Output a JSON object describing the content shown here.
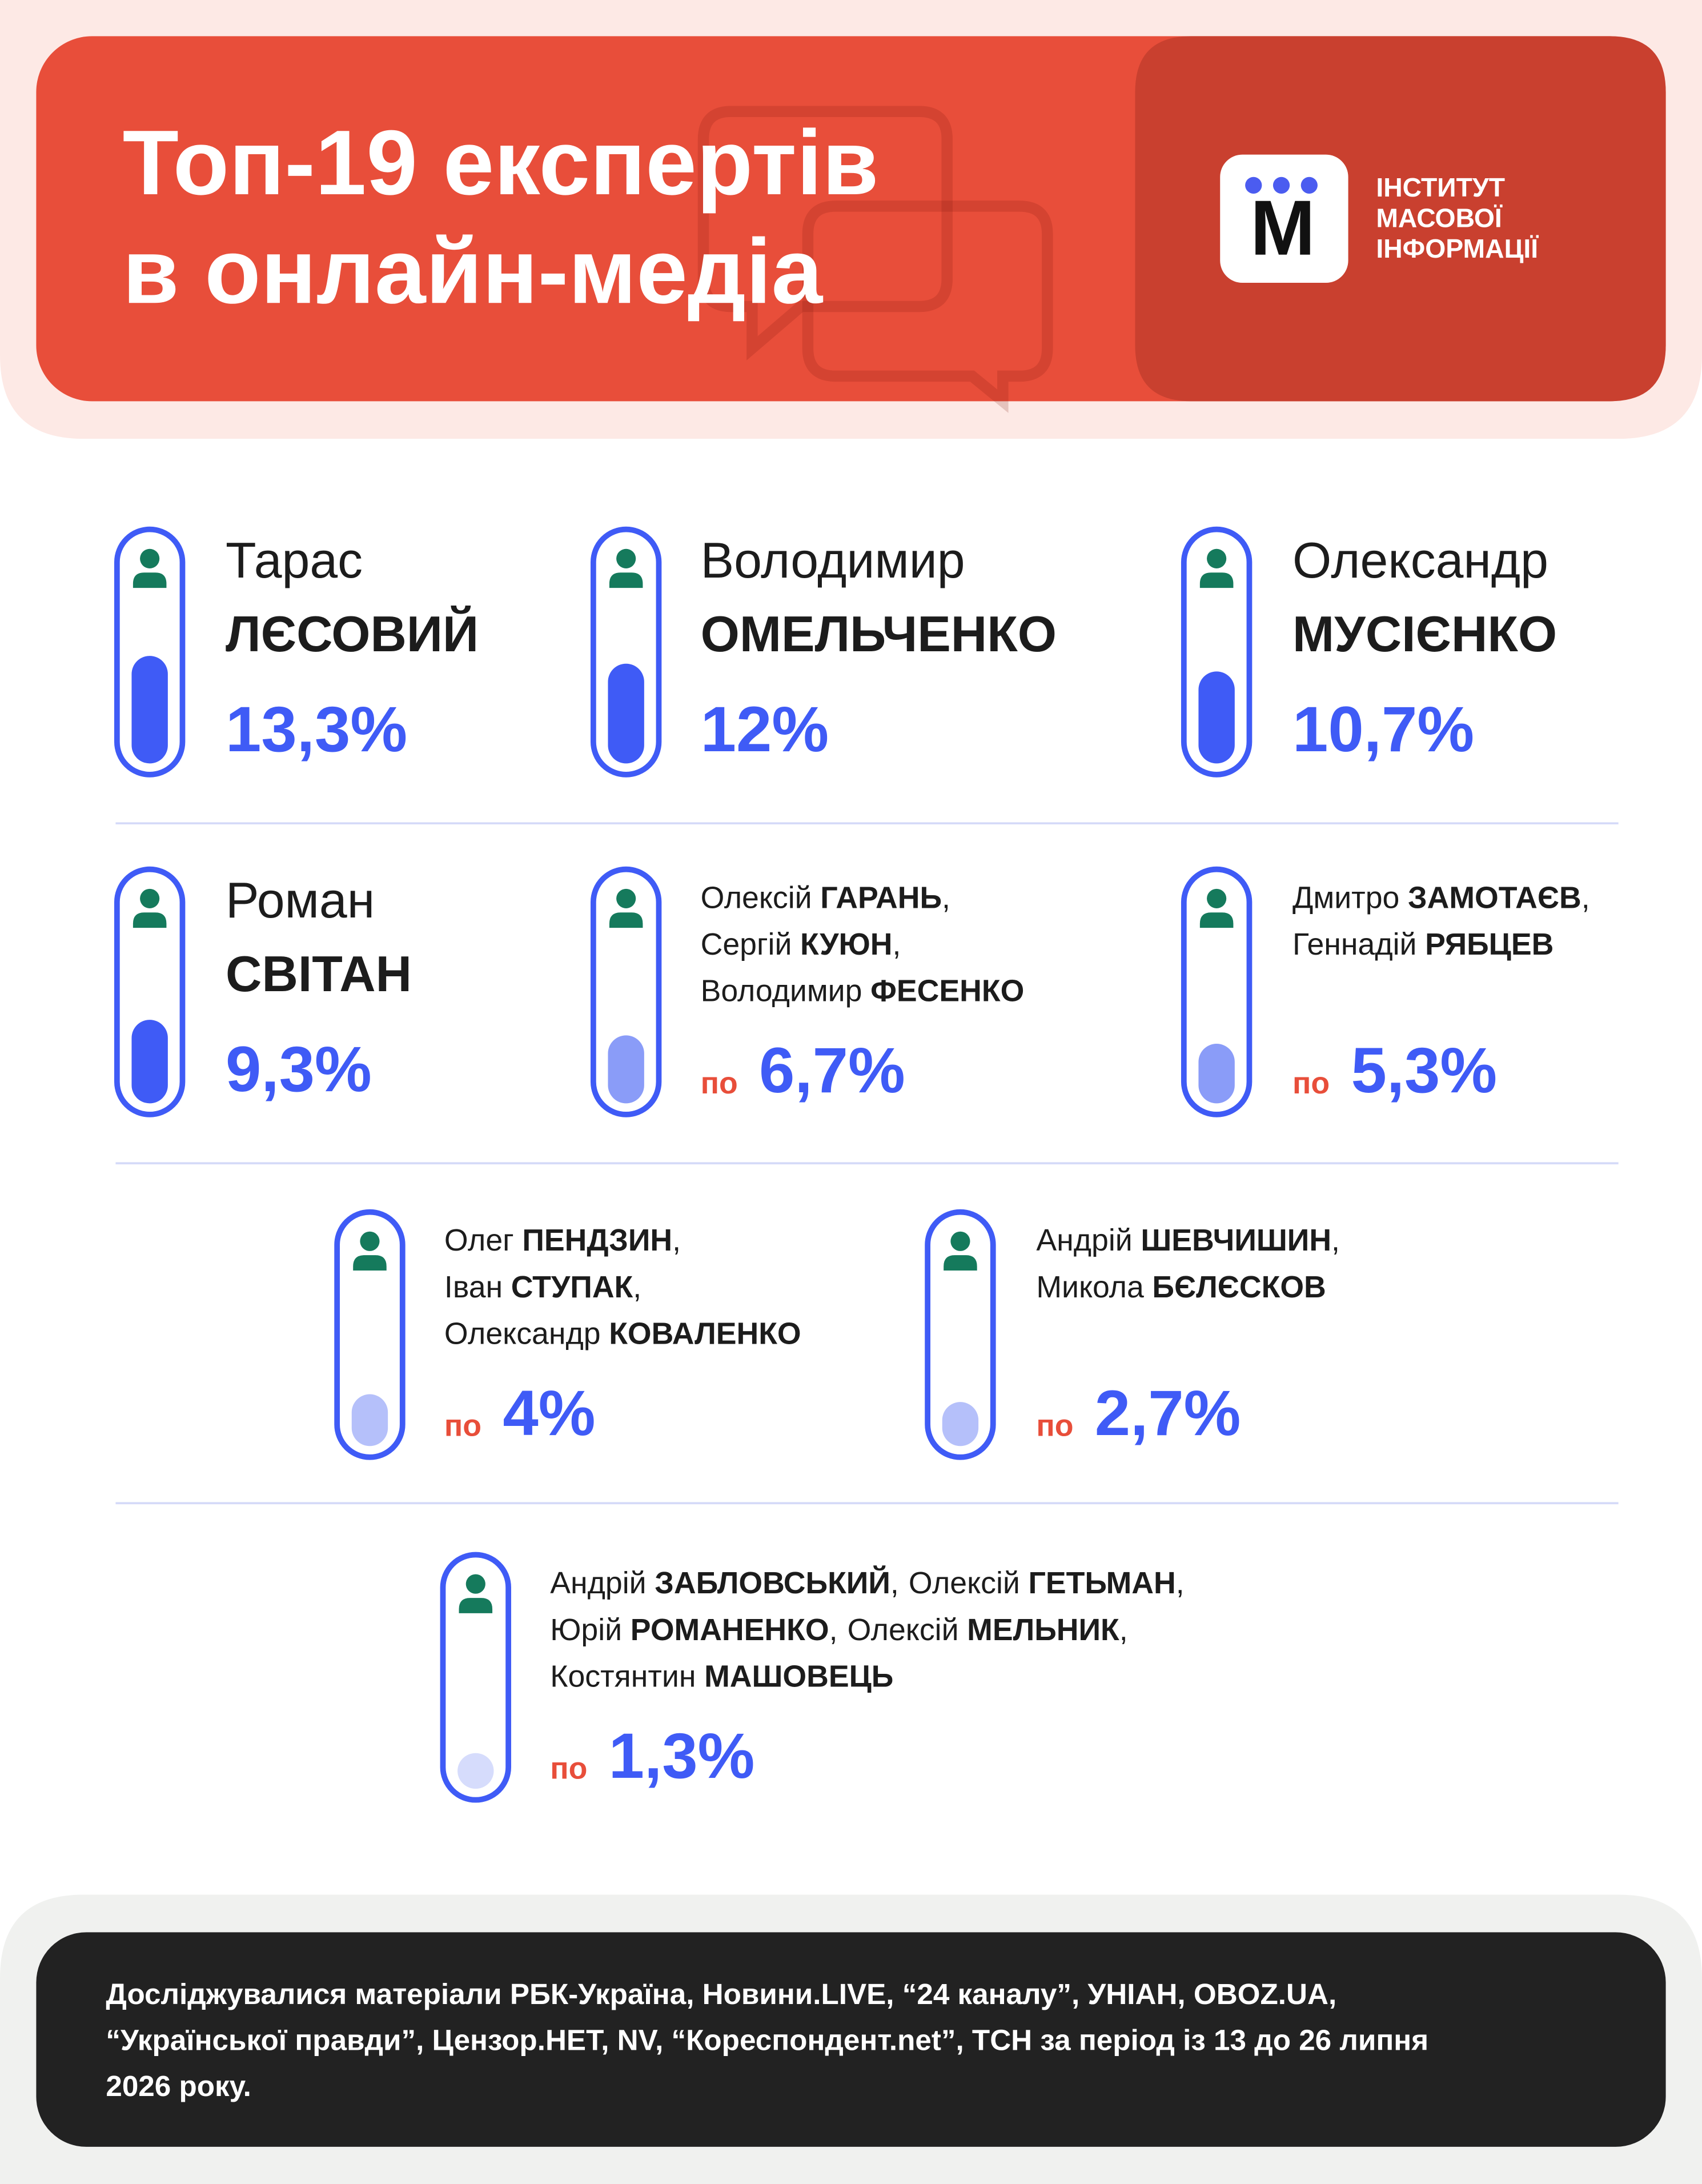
{
  "header": {
    "title_lines": [
      "Топ-19 експертів",
      "в онлайн-медіа"
    ],
    "logo_letter": "M",
    "logo_lines": [
      "ІНСТИТУТ",
      "МАСОВОЇ",
      "ІНФОРМАЦІЇ"
    ]
  },
  "items": [
    {
      "first_name": "Тарас",
      "last_name": "ЛЄСОВИЙ",
      "value": 13.3,
      "value_label": "13,3%",
      "color": "#3f5bf6"
    },
    {
      "first_name": "Володимир",
      "last_name": "ОМЕЛЬЧЕНКО",
      "value": 12,
      "value_label": "12%",
      "color": "#3f5bf6"
    },
    {
      "first_name": "Олександр",
      "last_name": "МУСІЄНКО",
      "value": 10.7,
      "value_label": "10,7%",
      "color": "#3f5bf6"
    },
    {
      "first_name": "Роман",
      "last_name": "СВІТАН",
      "value": 9.3,
      "value_label": "9,3%",
      "color": "#3f5bf6"
    },
    {
      "lines": [
        [
          {
            "first": "Олексій",
            "last": "ГАРАНЬ",
            "sep": ","
          }
        ],
        [
          {
            "first": "Сергій",
            "last": "КУЮН",
            "sep": ","
          }
        ],
        [
          {
            "first": "Володимир",
            "last": "ФЕСЕНКО"
          }
        ]
      ],
      "prefix": "по",
      "value": 6.7,
      "value_label": "6,7%",
      "color": "#8a9cf8"
    },
    {
      "lines": [
        [
          {
            "first": "Дмитро",
            "last": "ЗАМОТАЄВ",
            "sep": ","
          }
        ],
        [
          {
            "first": "Геннадій",
            "last": "РЯБЦЕВ"
          }
        ]
      ],
      "prefix": "по",
      "value": 5.3,
      "value_label": "5,3%",
      "color": "#8a9cf8"
    },
    {
      "lines": [
        [
          {
            "first": "Олег",
            "last": "ПЕНДЗИН",
            "sep": ","
          }
        ],
        [
          {
            "first": "Іван",
            "last": "СТУПАК",
            "sep": ","
          }
        ],
        [
          {
            "first": "Олександр",
            "last": "КОВАЛЕНКО"
          }
        ]
      ],
      "prefix": "по",
      "value": 4,
      "value_label": "4%",
      "color": "#b5c0fa"
    },
    {
      "lines": [
        [
          {
            "first": "Андрій",
            "last": "ШЕВЧИШИН",
            "sep": ","
          }
        ],
        [
          {
            "first": "Микола",
            "last": "БЄЛЄСКОВ"
          }
        ]
      ],
      "prefix": "по",
      "value": 2.7,
      "value_label": "2,7%",
      "color": "#b5c0fa"
    },
    {
      "lines": [
        [
          {
            "first": "Андрій",
            "last": "ЗАБЛОВСЬКИЙ",
            "sep": ","
          },
          {
            "first": "Олексій",
            "last": "ГЕТЬМАН",
            "sep": ","
          }
        ],
        [
          {
            "first": "Юрій",
            "last": "РОМАНЕНКО",
            "sep": ","
          },
          {
            "first": "Олексій",
            "last": "МЕЛЬНИК",
            "sep": ","
          }
        ],
        [
          {
            "first": "Костянтин",
            "last": "МАШОВЕЦЬ"
          }
        ]
      ],
      "prefix": "по",
      "value": 1.3,
      "value_label": "1,3%",
      "color": "#d6dcfc"
    }
  ],
  "footer": {
    "lines": [
      "Досліджувалися матеріали РБК-Україна, Новини.LIVE, “24 каналу”, УНІАН, OBOZ.UA,",
      "“Української правди”, Цензор.НЕТ, NV, “Кореспондент.net”, ТСН за період із 13 до 26 липня",
      "2026 року."
    ]
  }
}
